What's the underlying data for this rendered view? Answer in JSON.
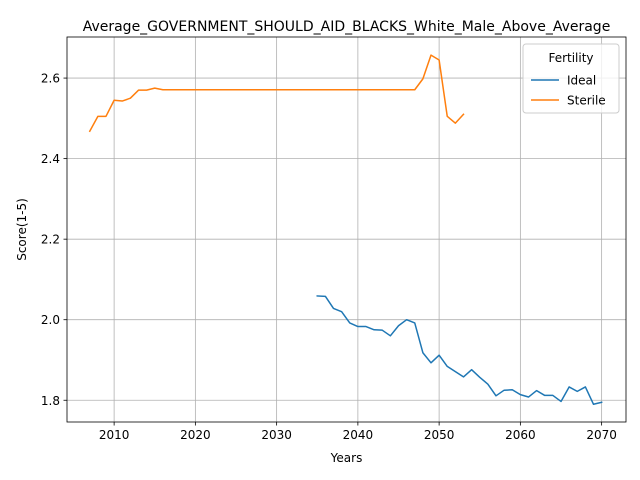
{
  "chart_data": {
    "type": "line",
    "title": "Average_GOVERNMENT_SHOULD_AID_BLACKS_White_Male_Above_Average",
    "xlabel": "Years",
    "ylabel": "Score(1-5)",
    "xlim": [
      2004.2,
      2073.0
    ],
    "ylim": [
      1.746,
      2.702
    ],
    "xticks": [
      2010,
      2020,
      2030,
      2040,
      2050,
      2060,
      2070
    ],
    "yticks": [
      1.8,
      2.0,
      2.2,
      2.4,
      2.6
    ],
    "xtick_labels": [
      "2010",
      "2020",
      "2030",
      "2040",
      "2050",
      "2060",
      "2070"
    ],
    "ytick_labels": [
      "1.8",
      "2.0",
      "2.2",
      "2.4",
      "2.6"
    ],
    "grid": true,
    "legend": {
      "title": "Fertility",
      "placement": "top-right"
    },
    "series": [
      {
        "name": "Ideal",
        "color": "#1f77b4",
        "x": [
          2035,
          2036,
          2037,
          2038,
          2039,
          2040,
          2041,
          2042,
          2043,
          2044,
          2045,
          2046,
          2047,
          2048,
          2049,
          2050,
          2051,
          2052,
          2053,
          2054,
          2055,
          2056,
          2057,
          2058,
          2059,
          2060,
          2061,
          2062,
          2063,
          2064,
          2065,
          2066,
          2067,
          2068,
          2069,
          2070
        ],
        "y": [
          2.059,
          2.058,
          2.028,
          2.02,
          1.992,
          1.983,
          1.983,
          1.975,
          1.974,
          1.96,
          1.985,
          2.0,
          1.992,
          1.918,
          1.893,
          1.912,
          1.884,
          1.871,
          1.858,
          1.876,
          1.857,
          1.84,
          1.811,
          1.825,
          1.826,
          1.814,
          1.808,
          1.824,
          1.812,
          1.812,
          1.797,
          1.833,
          1.822,
          1.833,
          1.79,
          1.795
        ]
      },
      {
        "name": "Sterile",
        "color": "#ff7f0e",
        "x": [
          2007,
          2008,
          2009,
          2010,
          2011,
          2012,
          2013,
          2014,
          2015,
          2016,
          2017,
          2018,
          2019,
          2020,
          2021,
          2022,
          2023,
          2024,
          2025,
          2026,
          2027,
          2028,
          2029,
          2030,
          2031,
          2032,
          2033,
          2034,
          2035,
          2036,
          2037,
          2038,
          2039,
          2040,
          2041,
          2042,
          2043,
          2044,
          2045,
          2046,
          2047,
          2048,
          2049,
          2050,
          2051,
          2052,
          2053
        ],
        "y": [
          2.468,
          2.505,
          2.505,
          2.545,
          2.543,
          2.55,
          2.57,
          2.57,
          2.575,
          2.571,
          2.571,
          2.571,
          2.571,
          2.571,
          2.571,
          2.571,
          2.571,
          2.571,
          2.571,
          2.571,
          2.571,
          2.571,
          2.571,
          2.571,
          2.571,
          2.571,
          2.571,
          2.571,
          2.571,
          2.571,
          2.571,
          2.571,
          2.571,
          2.571,
          2.571,
          2.571,
          2.571,
          2.571,
          2.571,
          2.571,
          2.571,
          2.598,
          2.657,
          2.645,
          2.505,
          2.488,
          2.51
        ]
      }
    ]
  }
}
